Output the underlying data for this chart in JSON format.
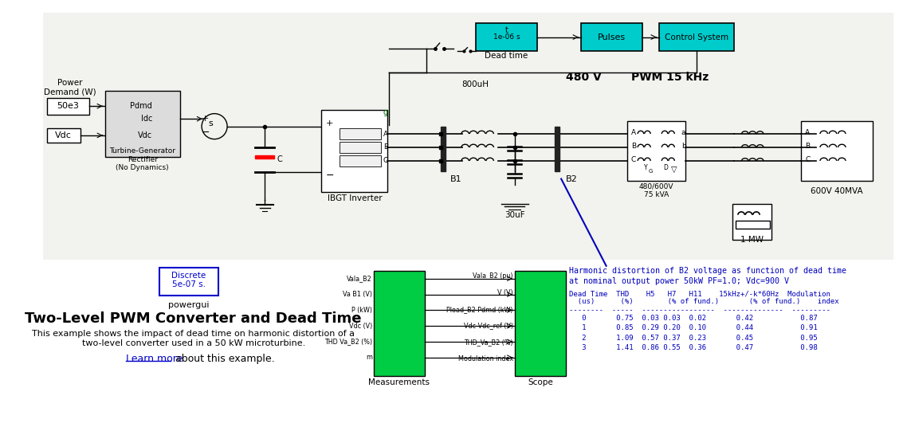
{
  "title": "Two-Level PWM Converter and Dead Time",
  "subtitle_line1": "This example shows the impact of dead time on harmonic distortion of a",
  "subtitle_line2": "two-level converter used in a 50 kW microturbine.",
  "link_text": "Learn more",
  "link_suffix": " about this example.",
  "powergui_label": "powergui",
  "discrete_line1": "Discrete",
  "discrete_line2": "5e-07 s.",
  "bg_color": "#ffffff",
  "cyan_fill": "#00cccc",
  "green_fill": "#00cc44",
  "harmonic_title_line1": "Harmonic distortion of B2 voltage as function of dead time",
  "harmonic_title_line2": "at nominal output power 50kW PF=1.0; Vdc=900 V",
  "table_header1": "Dead Time  THD    H5   H7   H11    15kHz+/-k*60Hz  Modulation",
  "table_header2": "  (us)      (%)        (% of fund.)       (% of fund.)    index",
  "table_sep": "--------  -----  -----------------  --------------  ---------",
  "table_rows": [
    "   0       0.75  0.03 0.03  0.02       0.42           0.87",
    "   1       0.85  0.29 0.20  0.10       0.44           0.91",
    "   2       1.09  0.57 0.37  0.23       0.45           0.95",
    "   3       1.41  0.86 0.55  0.36       0.47           0.98"
  ],
  "harmonic_color": "#0000bb",
  "label_480V": "480 V",
  "label_PWM": "PWM 15 kHz",
  "label_dead_time": "Dead time",
  "label_control": "Control System",
  "label_pulses": "Pulses",
  "label_800uH": "800uH",
  "label_30uF": "30uF",
  "label_B1": "B1",
  "label_B2": "B2",
  "label_480_600V": "480/600V\n75 kVA",
  "label_600V": "600V 40MVA",
  "label_1MW": "1 MW",
  "label_IGBT": "IBGT Inverter",
  "label_turbine1": "Turbine-Generator",
  "label_turbine2": "Rectifier",
  "label_turbine3": "(No Dynamics)",
  "label_power_demand": "Power\nDemand (W)",
  "label_50e3": "50e3",
  "label_Vdc": "Vdc",
  "label_Pdmd": "Pdmd",
  "label_Idc": "Idc",
  "label_C": "C",
  "label_measurements": "Measurements",
  "label_scope": "Scope",
  "mux_in_labels": [
    "Vala_B2",
    "Va B1 (V)",
    "P (kW)",
    "Vdc (V)",
    "THD Va_B2 (%)",
    "m"
  ],
  "scope_out_labels": [
    "Vala_B2 (pu)",
    "V (V)",
    "Pload_B2 Pdmd (kW)",
    "Vdc Vdc_ref (V)",
    "THD_Va_B2 (%)",
    "Modulation index"
  ]
}
